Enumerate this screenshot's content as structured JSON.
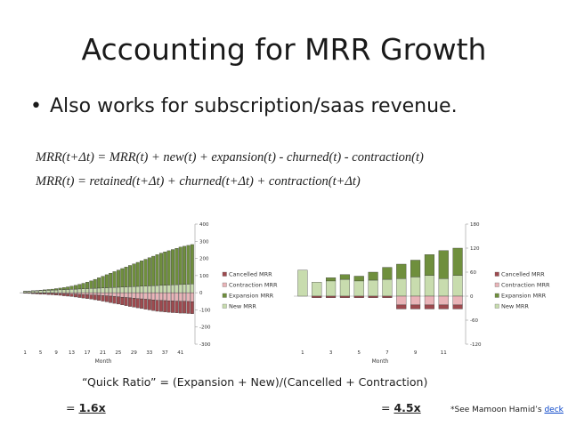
{
  "slide": {
    "title": "Accounting for MRR Growth",
    "bullet": "Also works for subscription/saas revenue.",
    "formula_1": "MRR(t+Δt) = MRR(t) + new(t) + expansion(t) - churned(t) - contraction(t)",
    "formula_2": "MRR(t) = retained(t+Δt) + churned(t+Δt) + contraction(t+Δt)",
    "quick_ratio": "“Quick Ratio” = (Expansion + New)/(Cancelled + Contraction)",
    "left_eq_prefix": "= ",
    "left_ratio": "1.6x",
    "right_eq_prefix": "= ",
    "right_ratio": "4.5x",
    "note_prefix": "*See Mamoon Hamid’s ",
    "note_link": "deck"
  },
  "colors": {
    "cancelled": "#9e4a4f",
    "contraction": "#e9b4b8",
    "expansion": "#6f8f3d",
    "new": "#c8dcae",
    "text": "#222222"
  },
  "chart_data": [
    {
      "type": "bar",
      "stacked": true,
      "xlabel": "Month",
      "ylabel": "",
      "ylim": [
        -300,
        400
      ],
      "yticks": [
        400,
        300,
        200,
        100,
        0,
        -100,
        -200,
        -300
      ],
      "xtick_labels": [
        "1",
        "5",
        "9",
        "13",
        "17",
        "21",
        "25",
        "29",
        "33",
        "37",
        "41"
      ],
      "legend_position": "right",
      "series": [
        {
          "name": "Cancelled MRR",
          "values": [
            -2,
            -3,
            -4,
            -5,
            -6,
            -6,
            -7,
            -8,
            -9,
            -10,
            -12,
            -13,
            -14,
            -16,
            -18,
            -20,
            -22,
            -24,
            -27,
            -30,
            -32,
            -35,
            -38,
            -40,
            -42,
            -45,
            -47,
            -50,
            -52,
            -54,
            -56,
            -58,
            -60,
            -62,
            -64,
            -65,
            -66,
            -67,
            -68,
            -68,
            -69,
            -69,
            -70,
            -70
          ]
        },
        {
          "name": "Contraction MRR",
          "values": [
            -1,
            -1,
            -2,
            -2,
            -3,
            -3,
            -4,
            -4,
            -5,
            -5,
            -6,
            -7,
            -8,
            -9,
            -10,
            -11,
            -12,
            -13,
            -14,
            -15,
            -17,
            -18,
            -20,
            -22,
            -24,
            -26,
            -28,
            -30,
            -32,
            -34,
            -36,
            -38,
            -40,
            -42,
            -44,
            -45,
            -46,
            -47,
            -48,
            -49,
            -50,
            -50,
            -51,
            -52
          ]
        },
        {
          "name": "Expansion MRR",
          "values": [
            1,
            1,
            2,
            2,
            3,
            4,
            5,
            6,
            8,
            10,
            12,
            15,
            18,
            22,
            27,
            32,
            38,
            44,
            52,
            60,
            68,
            76,
            84,
            92,
            100,
            108,
            116,
            124,
            132,
            140,
            148,
            156,
            164,
            172,
            180,
            188,
            194,
            200,
            206,
            212,
            218,
            222,
            226,
            230
          ]
        },
        {
          "name": "New MRR",
          "values": [
            8,
            9,
            10,
            11,
            12,
            13,
            14,
            15,
            16,
            17,
            18,
            19,
            20,
            21,
            22,
            23,
            24,
            25,
            26,
            27,
            28,
            29,
            30,
            31,
            32,
            33,
            34,
            35,
            36,
            37,
            38,
            39,
            40,
            41,
            42,
            43,
            44,
            45,
            46,
            47,
            48,
            49,
            50,
            51
          ]
        }
      ]
    },
    {
      "type": "bar",
      "stacked": true,
      "xlabel": "Month",
      "ylabel": "",
      "ylim": [
        -120,
        180
      ],
      "yticks": [
        180,
        120,
        60,
        0,
        -60,
        -120
      ],
      "x": [
        1,
        2,
        3,
        4,
        5,
        6,
        7,
        8,
        9,
        10,
        11,
        12
      ],
      "xtick_labels": [
        "1",
        "3",
        "5",
        "7",
        "9",
        "11"
      ],
      "legend_position": "right",
      "series": [
        {
          "name": "Cancelled MRR",
          "values": [
            0,
            -4,
            -4,
            -4,
            -4,
            -4,
            -4,
            -10,
            -10,
            -10,
            -10,
            -10
          ]
        },
        {
          "name": "Contraction MRR",
          "values": [
            0,
            0,
            0,
            0,
            0,
            0,
            0,
            -22,
            -22,
            -22,
            -22,
            -22
          ]
        },
        {
          "name": "Expansion MRR",
          "values": [
            0,
            0,
            8,
            12,
            12,
            20,
            30,
            36,
            42,
            52,
            70,
            68
          ]
        },
        {
          "name": "New MRR",
          "values": [
            65,
            35,
            38,
            42,
            38,
            40,
            42,
            44,
            48,
            52,
            44,
            52
          ]
        }
      ]
    }
  ]
}
